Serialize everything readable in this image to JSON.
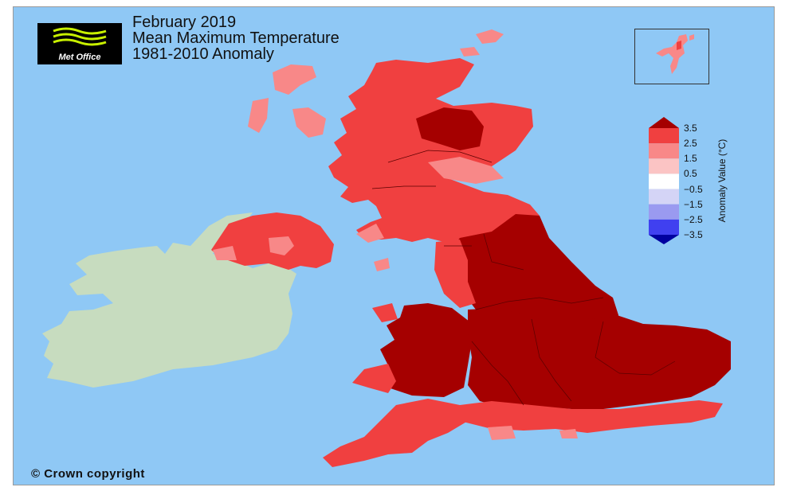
{
  "title": {
    "line1": "February 2019",
    "line2": "Mean Maximum Temperature",
    "line3": "1981-2010 Anomaly"
  },
  "logo": {
    "text": "Met Office"
  },
  "copyright": "© Crown copyright",
  "legend": {
    "title": "Anomaly Value (°C)",
    "ticks": [
      "3.5",
      "2.5",
      "1.5",
      "0.5",
      "−0.5",
      "−1.5",
      "−2.5",
      "−3.5"
    ],
    "colors": [
      "#a50000",
      "#f04040",
      "#f88888",
      "#fbc4c4",
      "#ffffff",
      "#d4d4f6",
      "#9a9af0",
      "#4040f0",
      "#0000a0"
    ]
  },
  "colors": {
    "sea": "#8fc8f5",
    "ireland": "#c7dcbf",
    "anomaly_above_3_5": "#a50000",
    "anomaly_2_5_to_3_5": "#f04040",
    "anomaly_1_5_to_2_5": "#f88888"
  }
}
